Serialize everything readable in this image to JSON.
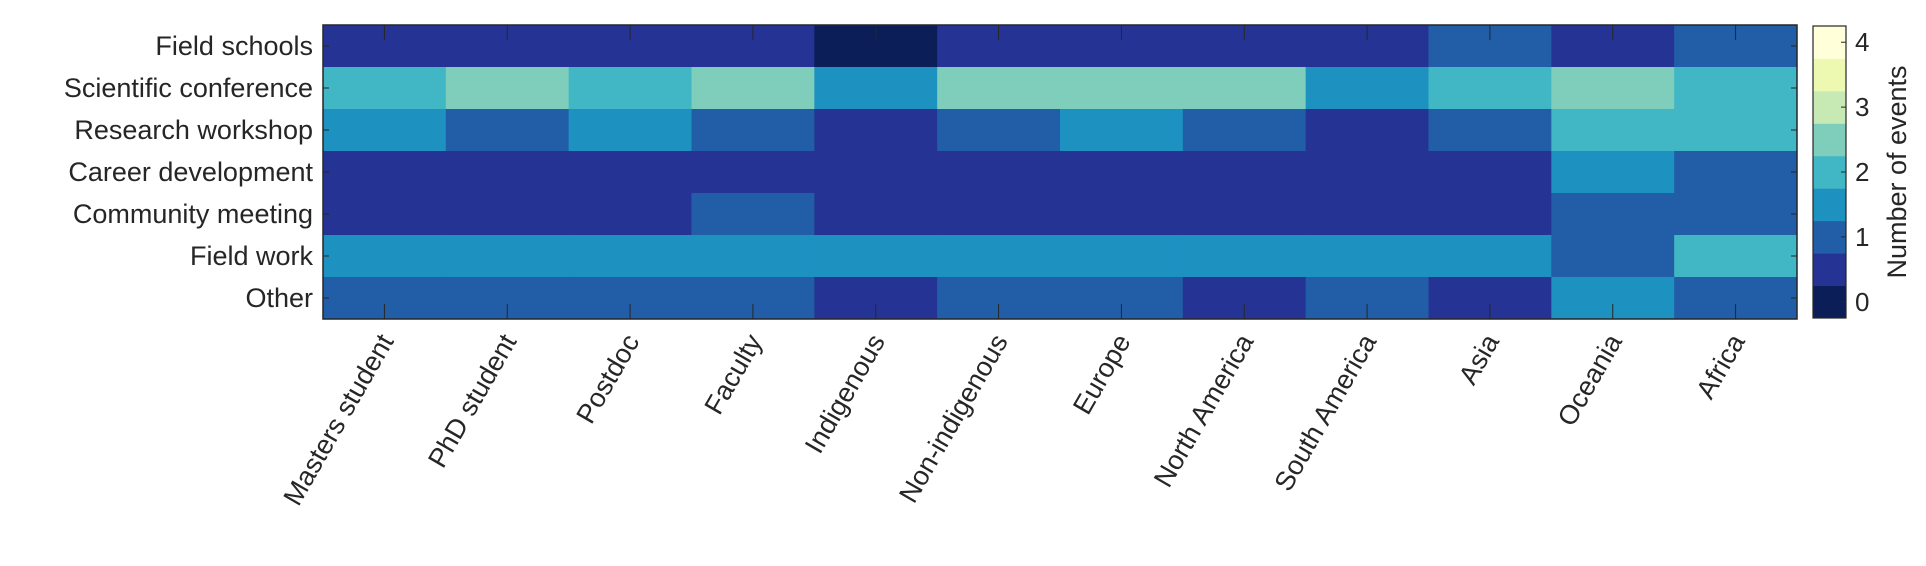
{
  "chart_data": {
    "type": "heatmap",
    "title": "",
    "xlabel": "",
    "ylabel": "",
    "x_categories": [
      "Masters student",
      "PhD student",
      "Postdoc",
      "Faculty",
      "Indigenous",
      "Non-indigenous",
      "Europe",
      "North America",
      "South America",
      "Asia",
      "Oceania",
      "Africa"
    ],
    "y_categories": [
      "Field schools",
      "Scientific conference",
      "Research workshop",
      "Career development",
      "Community meeting",
      "Field work",
      "Other"
    ],
    "values": [
      [
        0.5,
        0.5,
        0.5,
        0.5,
        0,
        0.5,
        0.5,
        0.5,
        0.5,
        1,
        0.5,
        1
      ],
      [
        2,
        2.5,
        2,
        2.5,
        1.5,
        2.5,
        2.5,
        2.5,
        1.5,
        2,
        2.5,
        2
      ],
      [
        1.5,
        1,
        1.5,
        1,
        0.5,
        1,
        1.5,
        1,
        0.5,
        1,
        2,
        2
      ],
      [
        0.5,
        0.5,
        0.5,
        0.5,
        0.5,
        0.5,
        0.5,
        0.5,
        0.5,
        0.5,
        1.5,
        1
      ],
      [
        0.5,
        0.5,
        0.5,
        1,
        0.5,
        0.5,
        0.5,
        0.5,
        0.5,
        0.5,
        1,
        1
      ],
      [
        1.5,
        1.5,
        1.5,
        1.5,
        1.5,
        1.5,
        1.5,
        1.5,
        1.5,
        1.5,
        1,
        2
      ],
      [
        1,
        1,
        1,
        1,
        0.5,
        1,
        1,
        0.5,
        1,
        0.5,
        1.5,
        1
      ]
    ],
    "colorbar": {
      "label": "Number of events",
      "ticks": [
        "0",
        "1",
        "2",
        "3",
        "4"
      ],
      "range": [
        -0.25,
        4.25
      ],
      "levels": [
        0,
        0.5,
        1,
        1.5,
        2,
        2.5,
        3,
        3.5,
        4
      ],
      "colors": [
        "#0b1e57",
        "#253494",
        "#225ea8",
        "#1d91c0",
        "#41b6c4",
        "#7fcdbb",
        "#c7e9b4",
        "#edf8b1",
        "#ffffd9"
      ]
    }
  }
}
